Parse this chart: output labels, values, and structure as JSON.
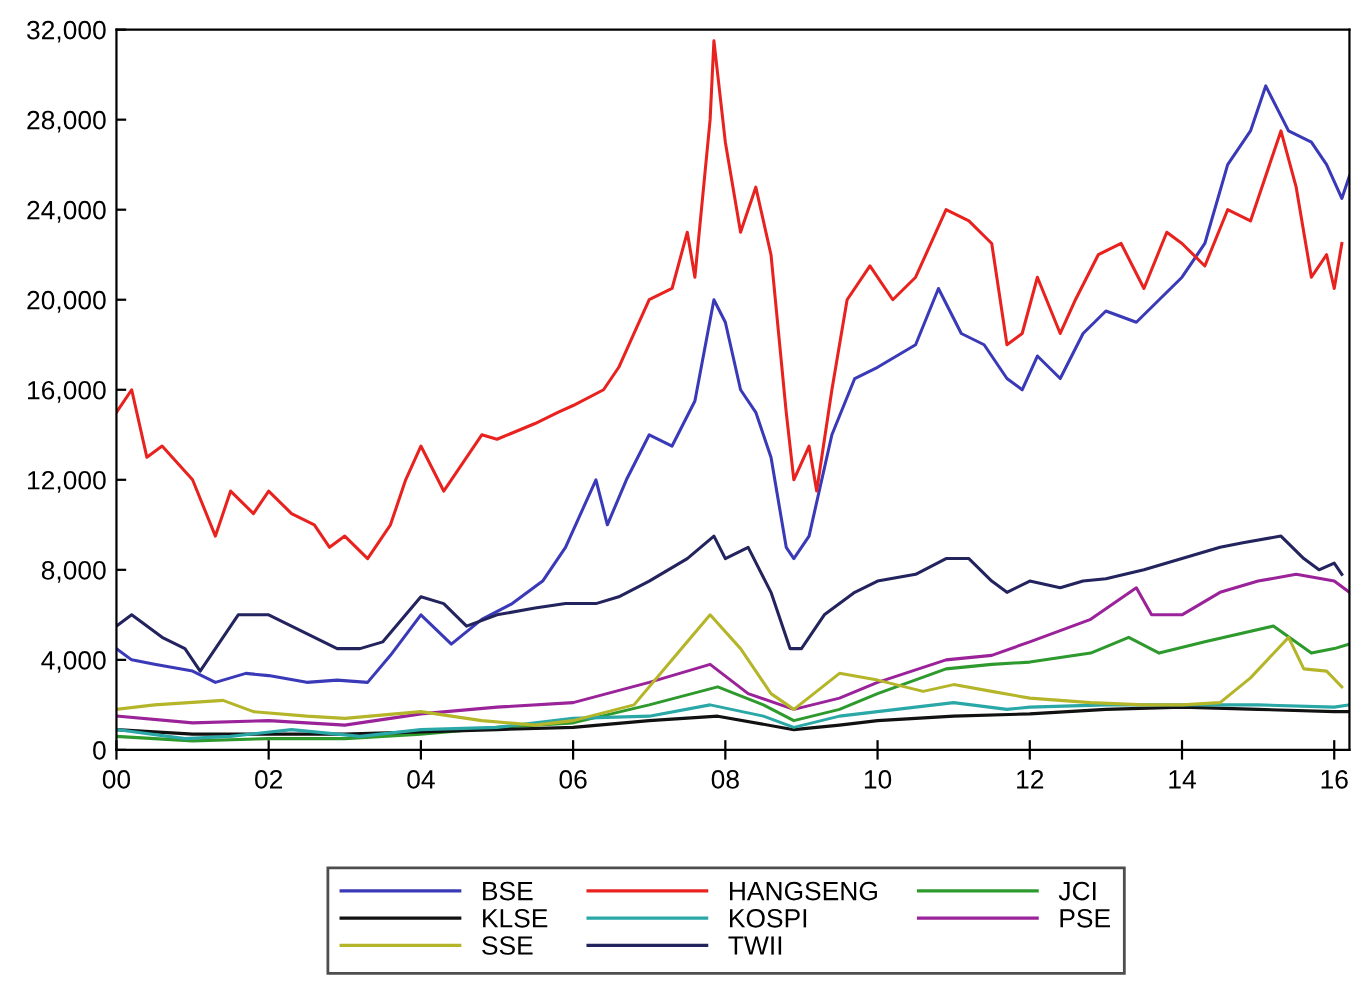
{
  "chart_data": {
    "type": "line",
    "xlim": [
      2000,
      2016.2
    ],
    "ylim": [
      0,
      32000
    ],
    "xticks": [
      {
        "value": 2000,
        "label": "00"
      },
      {
        "value": 2002,
        "label": "02"
      },
      {
        "value": 2004,
        "label": "04"
      },
      {
        "value": 2006,
        "label": "06"
      },
      {
        "value": 2008,
        "label": "08"
      },
      {
        "value": 2010,
        "label": "10"
      },
      {
        "value": 2012,
        "label": "12"
      },
      {
        "value": 2014,
        "label": "14"
      },
      {
        "value": 2016,
        "label": "16"
      }
    ],
    "yticks": [
      {
        "value": 0,
        "label": "0"
      },
      {
        "value": 4000,
        "label": "4,000"
      },
      {
        "value": 8000,
        "label": "8,000"
      },
      {
        "value": 12000,
        "label": "12,000"
      },
      {
        "value": 16000,
        "label": "16,000"
      },
      {
        "value": 20000,
        "label": "20,000"
      },
      {
        "value": 24000,
        "label": "24,000"
      },
      {
        "value": 28000,
        "label": "28,000"
      },
      {
        "value": 32000,
        "label": "32,000"
      }
    ],
    "grid": false,
    "legend": "bottom",
    "line_style": "solid",
    "series": [
      {
        "name": "BSE",
        "color": "#3a3ab8",
        "x": [
          2000,
          2000.2,
          2000.5,
          2001,
          2001.3,
          2001.7,
          2002,
          2002.5,
          2002.9,
          2003.3,
          2003.6,
          2004.0,
          2004.4,
          2004.8,
          2005.2,
          2005.6,
          2005.9,
          2006.3,
          2006.45,
          2006.7,
          2007.0,
          2007.3,
          2007.6,
          2007.85,
          2008.0,
          2008.2,
          2008.4,
          2008.6,
          2008.8,
          2008.9,
          2009.1,
          2009.4,
          2009.7,
          2010.0,
          2010.5,
          2010.8,
          2011.1,
          2011.4,
          2011.7,
          2011.9,
          2012.1,
          2012.4,
          2012.7,
          2013.0,
          2013.4,
          2013.7,
          2014.0,
          2014.3,
          2014.6,
          2014.9,
          2015.1,
          2015.4,
          2015.7,
          2015.9,
          2016.1,
          2016.2
        ],
        "values": [
          4500,
          4000,
          3800,
          3500,
          3000,
          3400,
          3300,
          3000,
          3100,
          3000,
          4200,
          6000,
          4700,
          5800,
          6500,
          7500,
          9000,
          12000,
          10000,
          12000,
          14000,
          13500,
          15500,
          20000,
          19000,
          16000,
          15000,
          13000,
          9000,
          8500,
          9500,
          14000,
          16500,
          17000,
          18000,
          20500,
          18500,
          18000,
          16500,
          16000,
          17500,
          16500,
          18500,
          19500,
          19000,
          20000,
          21000,
          22500,
          26000,
          27500,
          29500,
          27500,
          27000,
          26000,
          24500,
          25500
        ]
      },
      {
        "name": "HANGSENG",
        "color": "#e8231f",
        "x": [
          2000.0,
          2000.2,
          2000.4,
          2000.6,
          2001.0,
          2001.3,
          2001.5,
          2001.8,
          2002.0,
          2002.3,
          2002.6,
          2002.8,
          2003.0,
          2003.3,
          2003.6,
          2003.8,
          2004.0,
          2004.3,
          2004.5,
          2004.8,
          2005.0,
          2005.5,
          2005.8,
          2006.0,
          2006.4,
          2006.6,
          2006.8,
          2007.0,
          2007.3,
          2007.5,
          2007.6,
          2007.8,
          2007.85,
          2008.0,
          2008.2,
          2008.4,
          2008.6,
          2008.8,
          2008.9,
          2009.1,
          2009.2,
          2009.4,
          2009.6,
          2009.9,
          2010.2,
          2010.5,
          2010.9,
          2011.2,
          2011.5,
          2011.7,
          2011.9,
          2012.1,
          2012.4,
          2012.6,
          2012.9,
          2013.2,
          2013.5,
          2013.8,
          2014.0,
          2014.3,
          2014.6,
          2014.9,
          2015.3,
          2015.5,
          2015.7,
          2015.9,
          2016.0,
          2016.1
        ],
        "values": [
          15000,
          16000,
          13000,
          13500,
          12000,
          9500,
          11500,
          10500,
          11500,
          10500,
          10000,
          9000,
          9500,
          8500,
          10000,
          12000,
          13500,
          11500,
          12500,
          14000,
          13800,
          14500,
          15000,
          15300,
          16000,
          17000,
          18500,
          20000,
          20500,
          23000,
          21000,
          28000,
          31500,
          27000,
          23000,
          25000,
          22000,
          15000,
          12000,
          13500,
          11500,
          16000,
          20000,
          21500,
          20000,
          21000,
          24000,
          23500,
          22500,
          18000,
          18500,
          21000,
          18500,
          20000,
          22000,
          22500,
          20500,
          23000,
          22500,
          21500,
          24000,
          23500,
          27500,
          25000,
          21000,
          22000,
          20500,
          22500
        ]
      },
      {
        "name": "JCI",
        "color": "#2e9a2e",
        "x": [
          2000,
          2001,
          2002,
          2003,
          2004,
          2005,
          2006,
          2007,
          2007.9,
          2008.5,
          2008.9,
          2009.5,
          2010,
          2010.9,
          2011.5,
          2012,
          2012.8,
          2013.3,
          2013.7,
          2014.3,
          2015.2,
          2015.7,
          2016.0,
          2016.2
        ],
        "values": [
          600,
          400,
          500,
          500,
          700,
          1000,
          1200,
          2000,
          2800,
          2000,
          1300,
          1800,
          2500,
          3600,
          3800,
          3900,
          4300,
          5000,
          4300,
          4800,
          5500,
          4300,
          4500,
          4700
        ]
      },
      {
        "name": "KLSE",
        "color": "#111111",
        "x": [
          2000,
          2001,
          2002,
          2003,
          2004,
          2005,
          2006,
          2007,
          2007.9,
          2008.9,
          2009.5,
          2010,
          2011,
          2012,
          2013,
          2014,
          2015,
          2016,
          2016.2
        ],
        "values": [
          900,
          700,
          700,
          700,
          800,
          900,
          1000,
          1300,
          1500,
          900,
          1100,
          1300,
          1500,
          1600,
          1800,
          1900,
          1800,
          1700,
          1700
        ]
      },
      {
        "name": "KOSPI",
        "color": "#2aa7a7",
        "x": [
          2000,
          2000.9,
          2001.5,
          2002.3,
          2003.2,
          2004,
          2005,
          2006,
          2007,
          2007.8,
          2008.5,
          2008.9,
          2009.5,
          2010,
          2011,
          2011.7,
          2012,
          2013,
          2014,
          2015,
          2016,
          2016.2
        ],
        "values": [
          900,
          500,
          600,
          900,
          600,
          900,
          1000,
          1400,
          1500,
          2000,
          1500,
          1000,
          1500,
          1700,
          2100,
          1800,
          1900,
          2000,
          2000,
          2000,
          1900,
          2000
        ]
      },
      {
        "name": "PSE",
        "color": "#9a239a",
        "x": [
          2000,
          2001,
          2002,
          2003,
          2004,
          2005,
          2006,
          2007,
          2007.8,
          2008.3,
          2008.9,
          2009.5,
          2010,
          2010.9,
          2011.5,
          2012,
          2012.8,
          2013.4,
          2013.6,
          2014.0,
          2014.5,
          2015.0,
          2015.5,
          2016.0,
          2016.2
        ],
        "values": [
          1500,
          1200,
          1300,
          1100,
          1600,
          1900,
          2100,
          3000,
          3800,
          2500,
          1800,
          2300,
          3000,
          4000,
          4200,
          4800,
          5800,
          7200,
          6000,
          6000,
          7000,
          7500,
          7800,
          7500,
          7000
        ]
      },
      {
        "name": "SSE",
        "color": "#b5b52a",
        "x": [
          2000,
          2000.5,
          2001.4,
          2001.8,
          2002.5,
          2003,
          2004,
          2004.8,
          2005.5,
          2006,
          2006.8,
          2007.3,
          2007.8,
          2008.2,
          2008.6,
          2008.9,
          2009.5,
          2010,
          2010.6,
          2011.0,
          2011.5,
          2012,
          2012.8,
          2013.5,
          2014,
          2014.5,
          2014.9,
          2015.4,
          2015.6,
          2015.9,
          2016.1
        ],
        "values": [
          1800,
          2000,
          2200,
          1700,
          1500,
          1400,
          1700,
          1300,
          1100,
          1300,
          2000,
          4000,
          6000,
          4500,
          2500,
          1800,
          3400,
          3100,
          2600,
          2900,
          2600,
          2300,
          2100,
          2000,
          2000,
          2100,
          3200,
          5000,
          3600,
          3500,
          2800
        ]
      },
      {
        "name": "TWII",
        "color": "#23235e",
        "x": [
          2000,
          2000.2,
          2000.6,
          2000.9,
          2001.1,
          2001.3,
          2001.6,
          2002.0,
          2002.3,
          2002.6,
          2002.9,
          2003.2,
          2003.5,
          2003.8,
          2004.0,
          2004.3,
          2004.6,
          2005.0,
          2005.5,
          2005.9,
          2006.3,
          2006.6,
          2007.0,
          2007.5,
          2007.85,
          2008.0,
          2008.3,
          2008.6,
          2008.85,
          2009.0,
          2009.3,
          2009.7,
          2010.0,
          2010.5,
          2010.9,
          2011.2,
          2011.5,
          2011.7,
          2012.0,
          2012.4,
          2012.7,
          2013.0,
          2013.5,
          2014.0,
          2014.5,
          2014.8,
          2015.3,
          2015.6,
          2015.8,
          2016.0,
          2016.1
        ],
        "values": [
          5500,
          6000,
          5000,
          4500,
          3500,
          4500,
          6000,
          6000,
          5500,
          5000,
          4500,
          4500,
          4800,
          6000,
          6800,
          6500,
          5500,
          6000,
          6300,
          6500,
          6500,
          6800,
          7500,
          8500,
          9500,
          8500,
          9000,
          7000,
          4500,
          4500,
          6000,
          7000,
          7500,
          7800,
          8500,
          8500,
          7500,
          7000,
          7500,
          7200,
          7500,
          7600,
          8000,
          8500,
          9000,
          9200,
          9500,
          8500,
          8000,
          8300,
          7800
        ]
      }
    ]
  }
}
